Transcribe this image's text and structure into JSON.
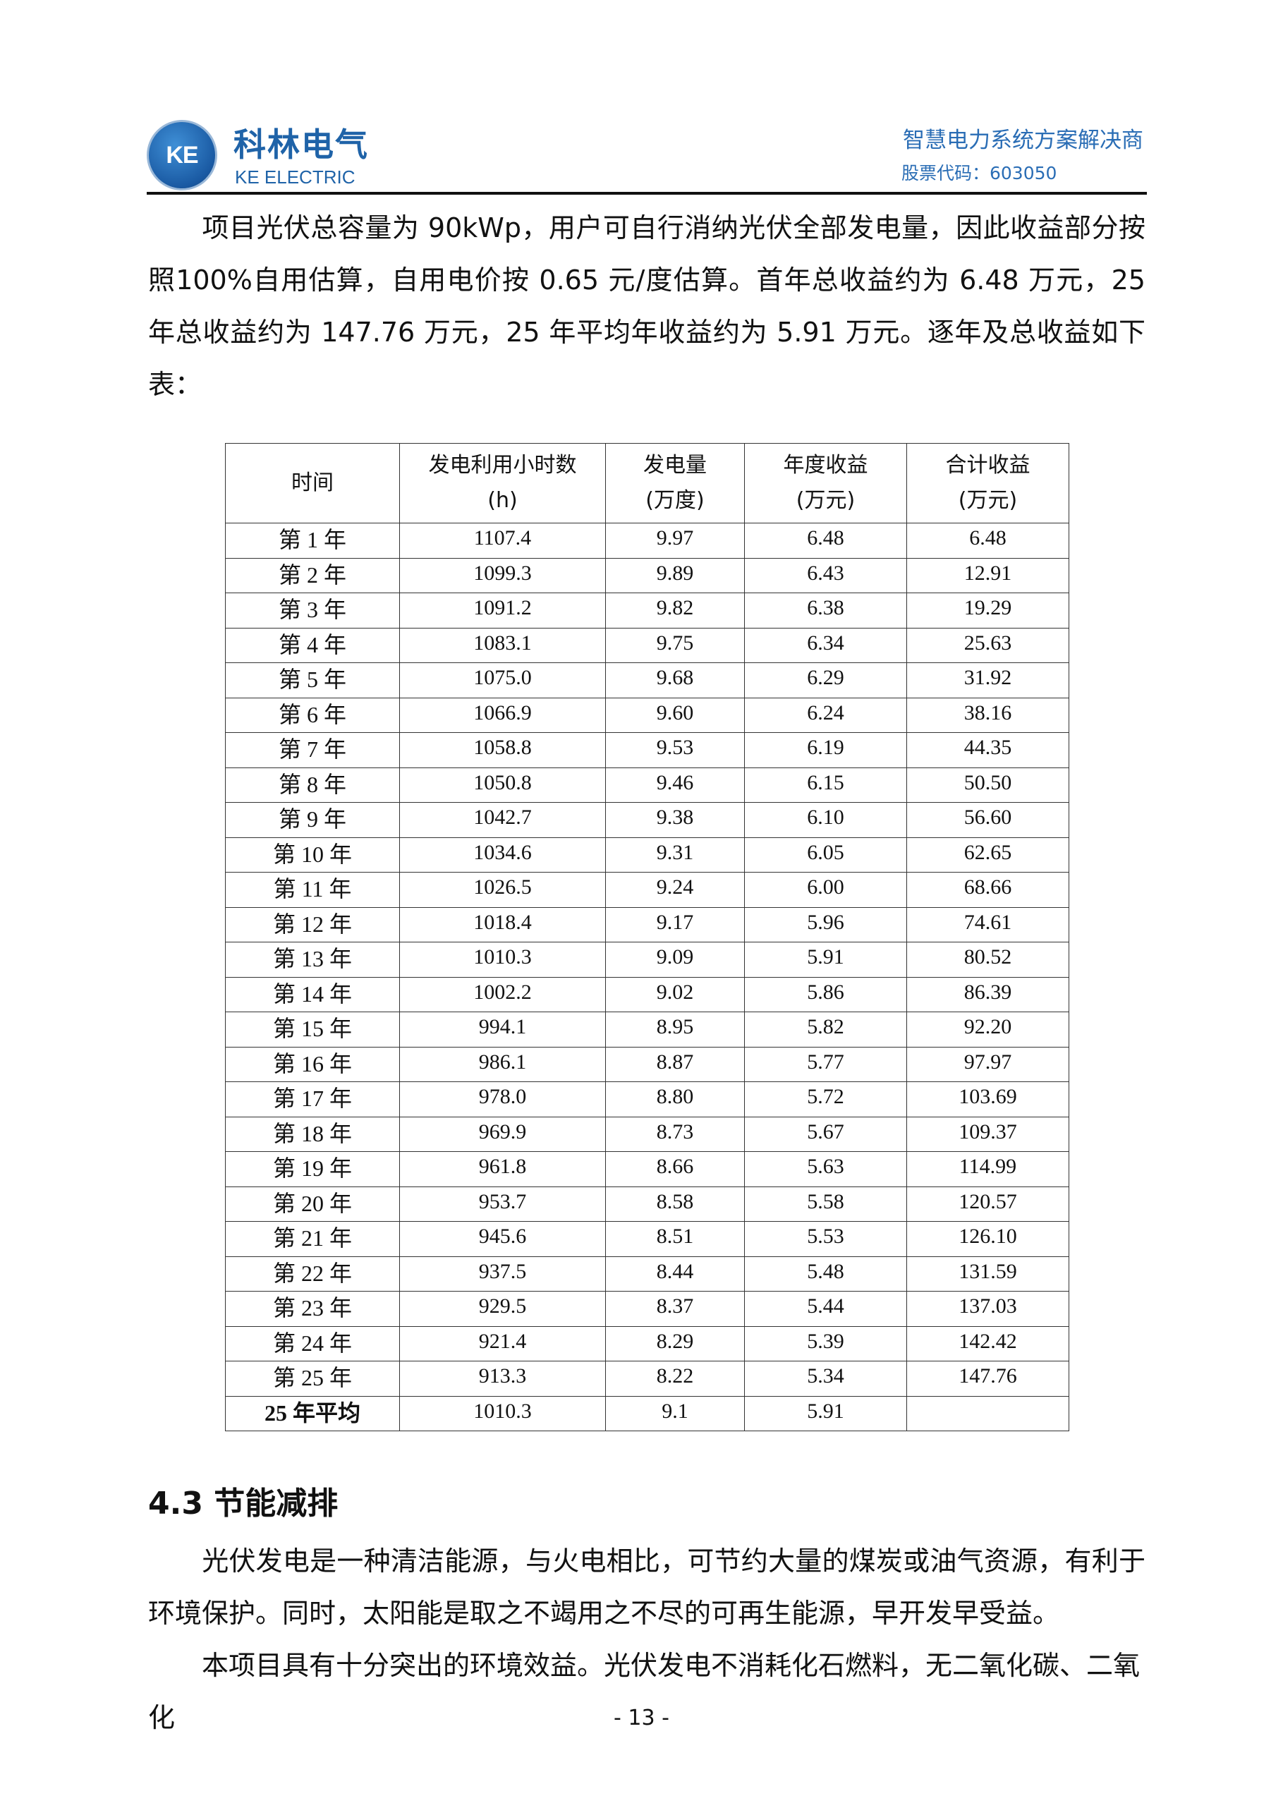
{
  "header": {
    "logo_text": "KE",
    "brand_cn": "科林电气",
    "brand_en": "KE ELECTRIC",
    "slogan": "智慧电力系统方案解决商",
    "stock_code": "股票代码：603050"
  },
  "intro": "项目光伏总容量为 90kWp，用户可自行消纳光伏全部发电量，因此收益部分按照100%自用估算，自用电价按 0.65 元/度估算。首年总收益约为 6.48 万元，25 年总收益约为 147.76 万元，25 年平均年收益约为 5.91 万元。逐年及总收益如下表：",
  "table": {
    "headers": [
      {
        "l1": "时间",
        "l2": ""
      },
      {
        "l1": "发电利用小时数",
        "l2": "(h)"
      },
      {
        "l1": "发电量",
        "l2": "(万度)"
      },
      {
        "l1": "年度收益",
        "l2": "(万元)"
      },
      {
        "l1": "合计收益",
        "l2": "(万元)"
      }
    ],
    "rows": [
      [
        "第 1 年",
        "1107.4",
        "9.97",
        "6.48",
        "6.48"
      ],
      [
        "第 2 年",
        "1099.3",
        "9.89",
        "6.43",
        "12.91"
      ],
      [
        "第 3 年",
        "1091.2",
        "9.82",
        "6.38",
        "19.29"
      ],
      [
        "第 4 年",
        "1083.1",
        "9.75",
        "6.34",
        "25.63"
      ],
      [
        "第 5 年",
        "1075.0",
        "9.68",
        "6.29",
        "31.92"
      ],
      [
        "第 6 年",
        "1066.9",
        "9.60",
        "6.24",
        "38.16"
      ],
      [
        "第 7 年",
        "1058.8",
        "9.53",
        "6.19",
        "44.35"
      ],
      [
        "第 8 年",
        "1050.8",
        "9.46",
        "6.15",
        "50.50"
      ],
      [
        "第 9 年",
        "1042.7",
        "9.38",
        "6.10",
        "56.60"
      ],
      [
        "第 10 年",
        "1034.6",
        "9.31",
        "6.05",
        "62.65"
      ],
      [
        "第 11 年",
        "1026.5",
        "9.24",
        "6.00",
        "68.66"
      ],
      [
        "第 12 年",
        "1018.4",
        "9.17",
        "5.96",
        "74.61"
      ],
      [
        "第 13 年",
        "1010.3",
        "9.09",
        "5.91",
        "80.52"
      ],
      [
        "第 14 年",
        "1002.2",
        "9.02",
        "5.86",
        "86.39"
      ],
      [
        "第 15 年",
        "994.1",
        "8.95",
        "5.82",
        "92.20"
      ],
      [
        "第 16 年",
        "986.1",
        "8.87",
        "5.77",
        "97.97"
      ],
      [
        "第 17 年",
        "978.0",
        "8.80",
        "5.72",
        "103.69"
      ],
      [
        "第 18 年",
        "969.9",
        "8.73",
        "5.67",
        "109.37"
      ],
      [
        "第 19 年",
        "961.8",
        "8.66",
        "5.63",
        "114.99"
      ],
      [
        "第 20 年",
        "953.7",
        "8.58",
        "5.58",
        "120.57"
      ],
      [
        "第 21 年",
        "945.6",
        "8.51",
        "5.53",
        "126.10"
      ],
      [
        "第 22 年",
        "937.5",
        "8.44",
        "5.48",
        "131.59"
      ],
      [
        "第 23 年",
        "929.5",
        "8.37",
        "5.44",
        "137.03"
      ],
      [
        "第 24 年",
        "921.4",
        "8.29",
        "5.39",
        "142.42"
      ],
      [
        "第 25 年",
        "913.3",
        "8.22",
        "5.34",
        "147.76"
      ]
    ],
    "average": [
      "25 年平均",
      "1010.3",
      "9.1",
      "5.91",
      ""
    ]
  },
  "section": {
    "heading": "4.3 节能减排",
    "p1": "光伏发电是一种清洁能源，与火电相比，可节约大量的煤炭或油气资源，有利于环境保护。同时，太阳能是取之不竭用之不尽的可再生能源，早开发早受益。",
    "p2": "本项目具有十分突出的环境效益。光伏发电不消耗化石燃料，无二氧化碳、二氧化"
  },
  "page_number": "- 13 -"
}
